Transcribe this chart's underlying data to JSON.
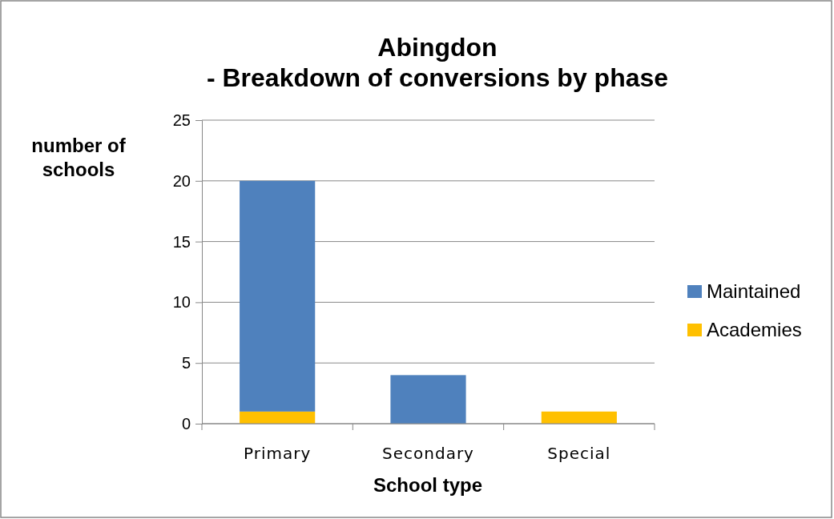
{
  "chart_data": {
    "type": "bar",
    "title": "Abingdon\n- Breakdown of conversions by phase",
    "xlabel": "School type",
    "ylabel": "number of schools",
    "categories": [
      "Primary",
      "Secondary",
      "Special"
    ],
    "stacked": true,
    "series": [
      {
        "name": "Academies",
        "color": "#ffc000",
        "values": [
          1,
          0,
          1
        ]
      },
      {
        "name": "Maintained",
        "color": "#4f81bd",
        "values": [
          19,
          4,
          0
        ]
      }
    ],
    "ylim": [
      0,
      25
    ],
    "yticks": [
      0,
      5,
      10,
      15,
      20,
      25
    ],
    "grid": "y",
    "legend": "right"
  }
}
